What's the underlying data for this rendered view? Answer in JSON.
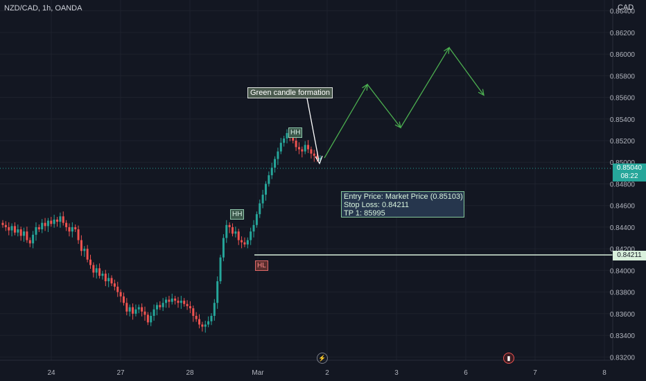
{
  "header": {
    "symbol": "NZD/CAD, 1h, OANDA",
    "currency": "CAD"
  },
  "price_labels": {
    "current": "0.85040",
    "countdown": "08:22",
    "stop_line": "0.84211"
  },
  "annotations": {
    "green_candle": "Green candle formation",
    "hh_1": "HH",
    "hh_2": "HH",
    "hl": "HL",
    "entry": "Entry Price: Market Price (0.85103)",
    "stop_loss": "Stop Loss: 0.84211",
    "tp1": "TP 1: 85995"
  },
  "icons": {
    "flash": "lightning-icon",
    "event": "flag-event-icon"
  },
  "colors": {
    "background": "#131722",
    "up": "#26a69a",
    "down": "#ef5350",
    "grid": "#1e222d",
    "axis_text": "#b2b5be",
    "projection": "#4caf50"
  },
  "chart_data": {
    "type": "candlestick",
    "symbol": "NZD/CAD",
    "interval": "1h",
    "y_axis": {
      "ticks": [
        "0.86400",
        "0.86200",
        "0.86000",
        "0.85800",
        "0.85600",
        "0.85400",
        "0.85200",
        "0.85000",
        "0.84800",
        "0.84600",
        "0.84400",
        "0.84200",
        "0.84000",
        "0.83800",
        "0.83600",
        "0.83400",
        "0.83200"
      ],
      "range": [
        0.8317,
        0.865
      ]
    },
    "x_axis": {
      "ticks": [
        "24",
        "27",
        "28",
        "Mar",
        "2",
        "3",
        "6",
        "7",
        "8"
      ]
    },
    "current_price": 0.8504,
    "horizontal_line": 0.84211,
    "closes": [
      0.8442,
      0.844,
      0.8437,
      0.8441,
      0.8435,
      0.8438,
      0.8432,
      0.8436,
      0.8428,
      0.8425,
      0.8433,
      0.844,
      0.8438,
      0.8444,
      0.8441,
      0.8446,
      0.8443,
      0.8447,
      0.8445,
      0.845,
      0.8444,
      0.844,
      0.8436,
      0.844,
      0.8438,
      0.8428,
      0.8418,
      0.842,
      0.841,
      0.8405,
      0.8398,
      0.8402,
      0.8395,
      0.8397,
      0.839,
      0.8393,
      0.8388,
      0.8385,
      0.838,
      0.8376,
      0.837,
      0.8362,
      0.8366,
      0.836,
      0.8364,
      0.8366,
      0.8362,
      0.8359,
      0.8352,
      0.8358,
      0.8364,
      0.8368,
      0.8366,
      0.837,
      0.8373,
      0.8371,
      0.8374,
      0.8372,
      0.837,
      0.8372,
      0.8369,
      0.8367,
      0.8365,
      0.8358,
      0.8355,
      0.835,
      0.8348,
      0.835,
      0.8353,
      0.8358,
      0.837,
      0.839,
      0.8412,
      0.843,
      0.8442,
      0.844,
      0.8434,
      0.8436,
      0.8428,
      0.8426,
      0.8424,
      0.8428,
      0.8436,
      0.8442,
      0.8452,
      0.8462,
      0.847,
      0.848,
      0.8488,
      0.8495,
      0.8503,
      0.851,
      0.8518,
      0.8522,
      0.8527,
      0.8525,
      0.852,
      0.8514,
      0.8512,
      0.851,
      0.8516,
      0.8512,
      0.8508,
      0.8506,
      0.8503,
      0.8504
    ],
    "projection_path": [
      0.8504,
      0.8572,
      0.8532,
      0.8606,
      0.8562
    ]
  }
}
